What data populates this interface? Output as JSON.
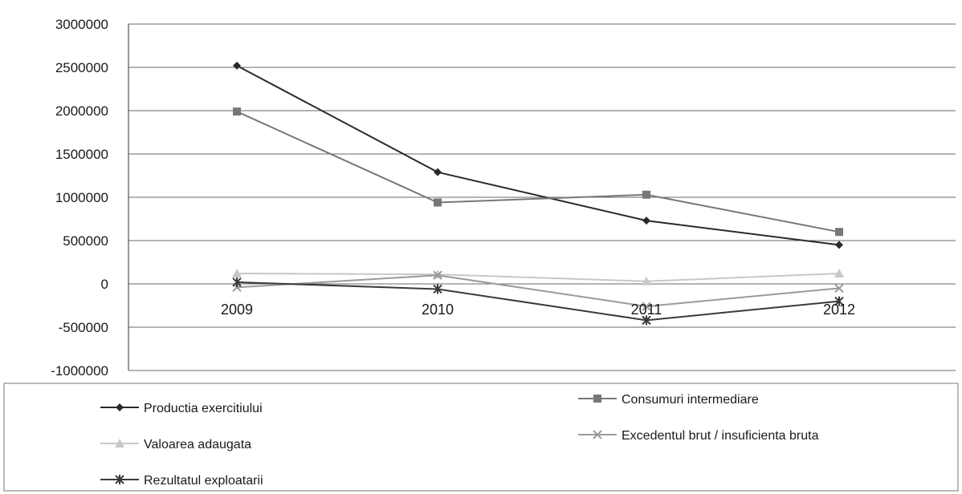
{
  "chart_data": {
    "type": "line",
    "categories": [
      "2009",
      "2010",
      "2011",
      "2012"
    ],
    "ylim": [
      -1000000,
      3000000
    ],
    "yticks": [
      3000000,
      2500000,
      2000000,
      1500000,
      1000000,
      500000,
      0,
      -500000,
      -1000000
    ],
    "ytick_labels": [
      "3000000",
      "2500000",
      "2000000",
      "1500000",
      "1000000",
      "500000",
      "0",
      "-500000",
      "-1000000"
    ],
    "grid": true,
    "legend_position": "bottom",
    "series": [
      {
        "name": "Productia exercitiului",
        "values": [
          2520000,
          1290000,
          730000,
          450000
        ],
        "color": "#2a2a2a",
        "marker": "diamond"
      },
      {
        "name": "Consumuri intermediare",
        "values": [
          1990000,
          940000,
          1030000,
          600000
        ],
        "color": "#777777",
        "marker": "square"
      },
      {
        "name": "Valoarea adaugata",
        "values": [
          120000,
          110000,
          30000,
          120000
        ],
        "color": "#c8c8c8",
        "marker": "triangle"
      },
      {
        "name": "Excedentul brut / insuficienta bruta",
        "values": [
          -40000,
          100000,
          -260000,
          -50000
        ],
        "color": "#9a9a9a",
        "marker": "x"
      },
      {
        "name": "Rezultatul exploatarii",
        "values": [
          20000,
          -60000,
          -420000,
          -200000
        ],
        "color": "#3a3a3a",
        "marker": "star"
      }
    ]
  }
}
